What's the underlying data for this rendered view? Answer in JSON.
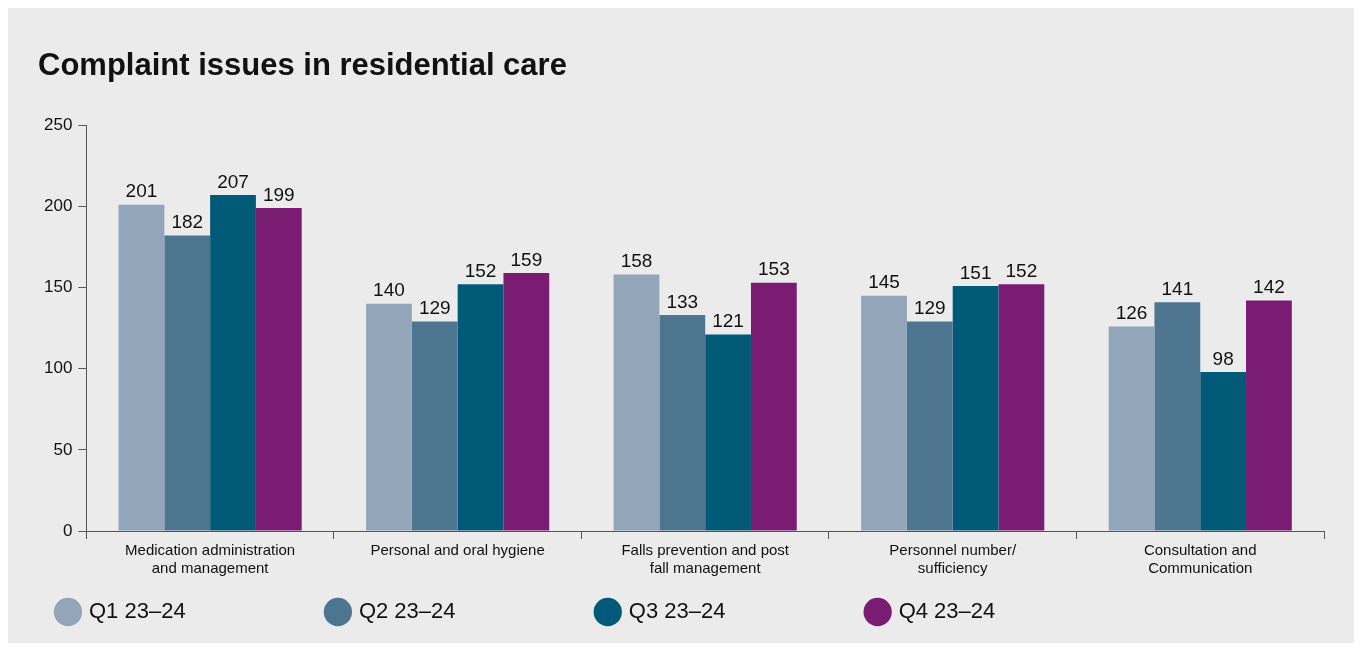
{
  "chart_data": {
    "type": "bar",
    "title": "Complaint issues in residential care",
    "categories": [
      "Medication administration and management",
      "Personal and oral hygiene",
      "Falls prevention and post fall management",
      "Personnel number/ sufficiency",
      "Consultation and Communication"
    ],
    "series": [
      {
        "name": "Q1 23–24",
        "color": "#93a5b9",
        "values": [
          201,
          140,
          158,
          145,
          126
        ]
      },
      {
        "name": "Q2 23–24",
        "color": "#4e7590",
        "values": [
          182,
          129,
          133,
          129,
          141
        ]
      },
      {
        "name": "Q3 23–24",
        "color": "#005a78",
        "values": [
          207,
          152,
          121,
          151,
          98
        ]
      },
      {
        "name": "Q4 23–24",
        "color": "#7a1d72",
        "values": [
          199,
          159,
          153,
          152,
          142
        ]
      }
    ],
    "ylim": [
      0,
      250
    ],
    "yticks": [
      0,
      50,
      100,
      150,
      200,
      250
    ],
    "grid": false,
    "legend": "bottom",
    "marker": "circle",
    "data_labels": true
  }
}
